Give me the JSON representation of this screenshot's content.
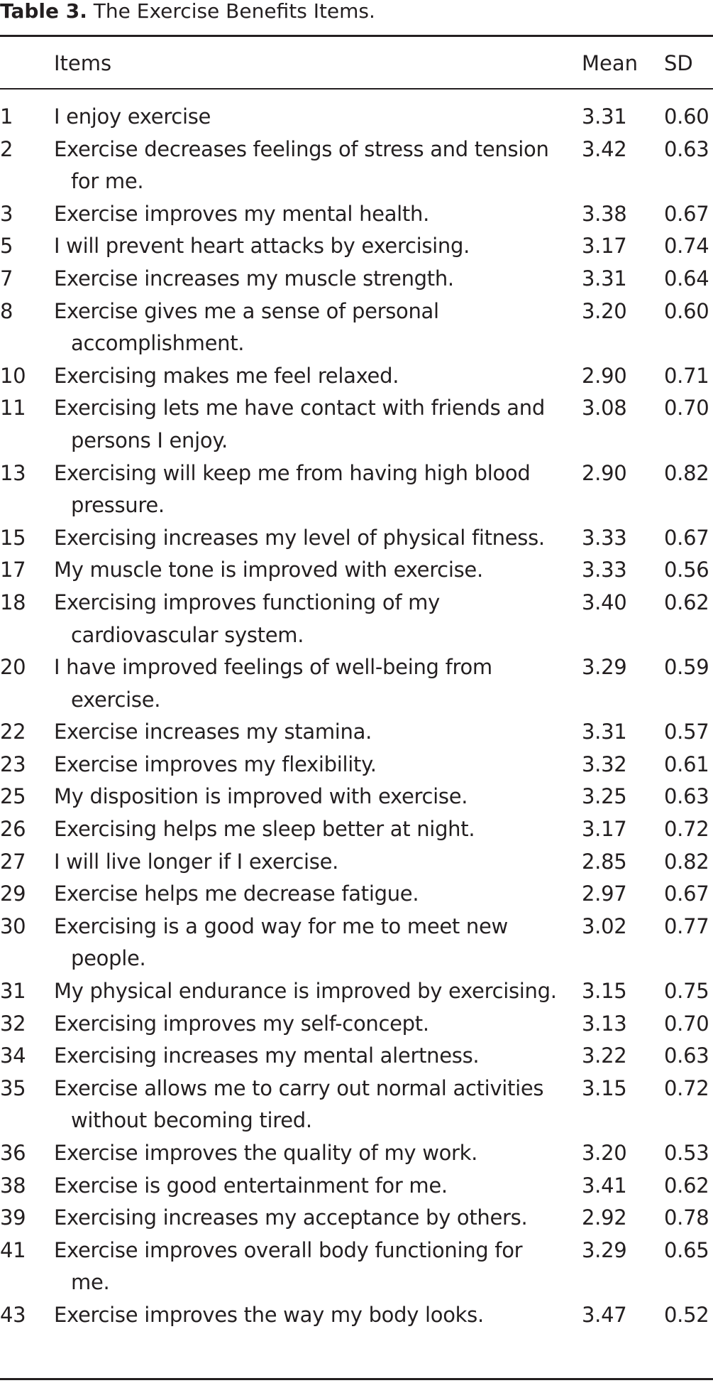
{
  "caption": {
    "label": "Table 3.",
    "title": "The Exercise Benefits Items."
  },
  "table": {
    "headers": {
      "number": "",
      "item": "Items",
      "mean": "Mean",
      "sd": "SD"
    },
    "rows": [
      {
        "num": "1",
        "item": "I enjoy exercise",
        "mean": "3.31",
        "sd": "0.60"
      },
      {
        "num": "2",
        "item": "Exercise decreases feelings of stress and tension for me.",
        "mean": "3.42",
        "sd": "0.63"
      },
      {
        "num": "3",
        "item": "Exercise improves my mental health.",
        "mean": "3.38",
        "sd": "0.67"
      },
      {
        "num": "5",
        "item": "I will prevent heart attacks by exercising.",
        "mean": "3.17",
        "sd": "0.74"
      },
      {
        "num": "7",
        "item": "Exercise increases my muscle strength.",
        "mean": "3.31",
        "sd": "0.64"
      },
      {
        "num": "8",
        "item": "Exercise gives me a sense of personal accomplishment.",
        "mean": "3.20",
        "sd": "0.60"
      },
      {
        "num": "10",
        "item": "Exercising makes me feel relaxed.",
        "mean": "2.90",
        "sd": "0.71"
      },
      {
        "num": "11",
        "item": "Exercising lets me have contact with friends and persons I enjoy.",
        "mean": "3.08",
        "sd": "0.70"
      },
      {
        "num": "13",
        "item": "Exercising will keep me from having high blood pressure.",
        "mean": "2.90",
        "sd": "0.82"
      },
      {
        "num": "15",
        "item": "Exercising increases my level of physical fitness.",
        "mean": "3.33",
        "sd": "0.67"
      },
      {
        "num": "17",
        "item": "My muscle tone is improved with exercise.",
        "mean": "3.33",
        "sd": "0.56"
      },
      {
        "num": "18",
        "item": "Exercising improves functioning of my cardiovascular system.",
        "mean": "3.40",
        "sd": "0.62"
      },
      {
        "num": "20",
        "item": "I have improved feelings of well-being from exercise.",
        "mean": "3.29",
        "sd": "0.59"
      },
      {
        "num": "22",
        "item": "Exercise increases my stamina.",
        "mean": "3.31",
        "sd": "0.57"
      },
      {
        "num": "23",
        "item": "Exercise improves my flexibility.",
        "mean": "3.32",
        "sd": "0.61"
      },
      {
        "num": "25",
        "item": "My disposition is improved with exercise.",
        "mean": "3.25",
        "sd": "0.63"
      },
      {
        "num": "26",
        "item": "Exercising helps me sleep better at night.",
        "mean": "3.17",
        "sd": "0.72"
      },
      {
        "num": "27",
        "item": "I will live longer if I exercise.",
        "mean": "2.85",
        "sd": "0.82"
      },
      {
        "num": "29",
        "item": "Exercise helps me decrease fatigue.",
        "mean": "2.97",
        "sd": "0.67"
      },
      {
        "num": "30",
        "item": "Exercising is a good way for me to meet new people.",
        "mean": "3.02",
        "sd": "0.77"
      },
      {
        "num": "31",
        "item": "My physical endurance is improved by exercising.",
        "mean": "3.15",
        "sd": "0.75"
      },
      {
        "num": "32",
        "item": "Exercising improves my self-concept.",
        "mean": "3.13",
        "sd": "0.70"
      },
      {
        "num": "34",
        "item": "Exercising increases my mental alertness.",
        "mean": "3.22",
        "sd": "0.63"
      },
      {
        "num": "35",
        "item": "Exercise allows me to carry out normal activities without becoming tired.",
        "mean": "3.15",
        "sd": "0.72"
      },
      {
        "num": "36",
        "item": "Exercise improves the quality of my work.",
        "mean": "3.20",
        "sd": "0.53"
      },
      {
        "num": "38",
        "item": "Exercise is good entertainment for me.",
        "mean": "3.41",
        "sd": "0.62"
      },
      {
        "num": "39",
        "item": "Exercising increases my acceptance by others.",
        "mean": "2.92",
        "sd": "0.78"
      },
      {
        "num": "41",
        "item": "Exercise improves overall body functioning for me.",
        "mean": "3.29",
        "sd": "0.65"
      },
      {
        "num": "43",
        "item": "Exercise improves the way my body looks.",
        "mean": "3.47",
        "sd": "0.52"
      }
    ]
  }
}
